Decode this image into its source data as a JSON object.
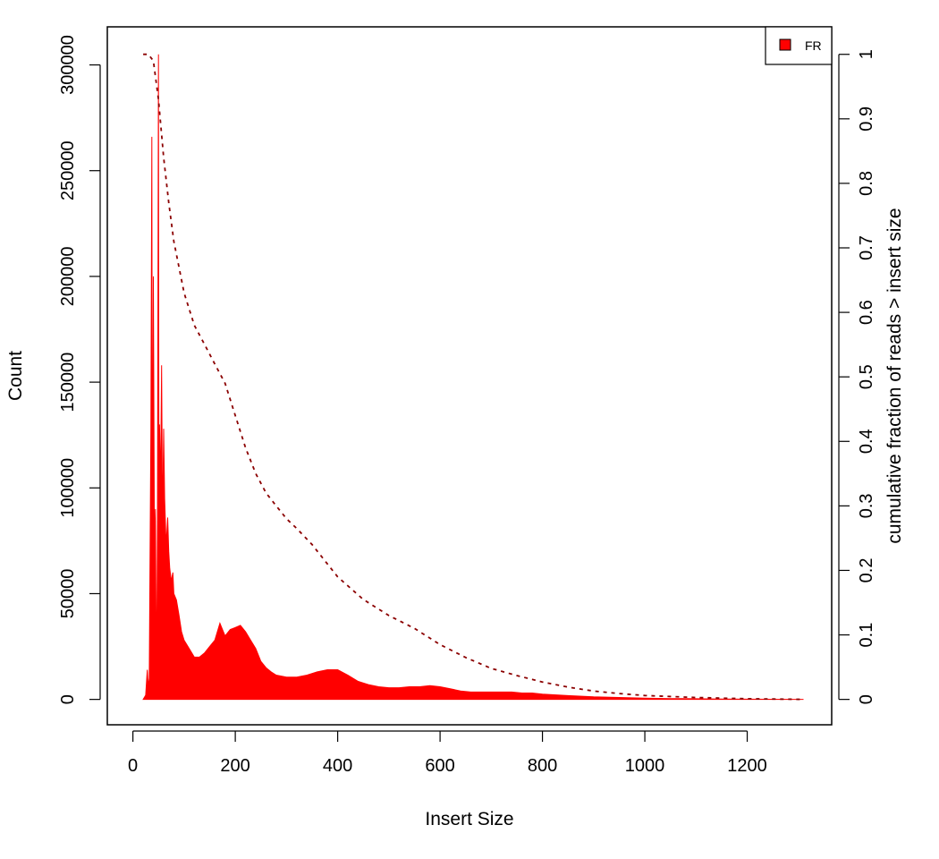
{
  "colors": {
    "histogram": "#ff0000",
    "cumulative": "#8b0000",
    "frame": "#000000"
  },
  "chart_data": {
    "type": "area",
    "xlabel": "Insert Size",
    "ylabel": "Count",
    "ylabel_right": "cumulative fraction of reads > insert size",
    "xlim": [
      -50,
      1365
    ],
    "ylim": [
      -12000,
      318000
    ],
    "ylim_right": [
      0,
      1
    ],
    "x_ticks": [
      "0",
      "200",
      "400",
      "600",
      "800",
      "1000",
      "1200"
    ],
    "y_ticks": [
      "0",
      "50000",
      "100000",
      "150000",
      "200000",
      "250000",
      "300000"
    ],
    "y_right_ticks": [
      "0",
      "0.1",
      "0.2",
      "0.3",
      "0.4",
      "0.5",
      "0.6",
      "0.7",
      "0.8",
      "0.9",
      "1"
    ],
    "legend": {
      "placement": "top-right",
      "entries": [
        "FR"
      ]
    },
    "series": [
      {
        "name": "FR",
        "kind": "histogram",
        "x": [
          20,
          25,
          28,
          30,
          32,
          35,
          37,
          38,
          40,
          42,
          44,
          46,
          48,
          50,
          51,
          52,
          54,
          56,
          58,
          60,
          62,
          65,
          68,
          70,
          72,
          75,
          78,
          80,
          85,
          90,
          95,
          100,
          110,
          120,
          130,
          140,
          150,
          160,
          170,
          180,
          190,
          200,
          210,
          220,
          230,
          240,
          250,
          260,
          270,
          280,
          290,
          300,
          320,
          340,
          360,
          380,
          400,
          420,
          440,
          460,
          480,
          500,
          520,
          540,
          560,
          580,
          600,
          620,
          640,
          660,
          680,
          700,
          720,
          740,
          760,
          780,
          800,
          850,
          900,
          950,
          1000,
          1050,
          1100,
          1150,
          1200,
          1250,
          1310
        ],
        "values": [
          0,
          2000,
          14000,
          6000,
          10000,
          127000,
          266000,
          60000,
          200000,
          70000,
          90000,
          5000,
          85000,
          305000,
          55000,
          130000,
          100000,
          158000,
          80000,
          128000,
          95000,
          73000,
          86000,
          70000,
          62000,
          56000,
          60000,
          50000,
          47000,
          40000,
          32000,
          28000,
          24000,
          20000,
          20000,
          22000,
          25000,
          28000,
          36000,
          30000,
          33000,
          34000,
          35000,
          32000,
          28000,
          24000,
          18000,
          15000,
          13000,
          11500,
          11000,
          10500,
          10500,
          11500,
          13000,
          14000,
          14000,
          11500,
          8500,
          7000,
          6000,
          5500,
          5500,
          6000,
          6000,
          6500,
          6000,
          5000,
          4000,
          3500,
          3500,
          3500,
          3500,
          3500,
          3000,
          3000,
          2500,
          1800,
          1200,
          900,
          600,
          400,
          300,
          200,
          100,
          50,
          0
        ]
      },
      {
        "name": "cumulative",
        "kind": "cumulative",
        "axis": "right",
        "x": [
          20,
          30,
          40,
          50,
          60,
          70,
          80,
          100,
          120,
          140,
          160,
          180,
          200,
          220,
          240,
          260,
          280,
          300,
          320,
          350,
          380,
          400,
          450,
          500,
          550,
          600,
          650,
          700,
          750,
          800,
          850,
          900,
          950,
          1000,
          1100,
          1200,
          1310
        ],
        "values": [
          1.0,
          1.0,
          0.99,
          0.93,
          0.84,
          0.77,
          0.71,
          0.63,
          0.58,
          0.55,
          0.52,
          0.49,
          0.44,
          0.39,
          0.35,
          0.32,
          0.3,
          0.28,
          0.265,
          0.24,
          0.21,
          0.19,
          0.155,
          0.13,
          0.11,
          0.085,
          0.065,
          0.048,
          0.037,
          0.027,
          0.019,
          0.013,
          0.009,
          0.006,
          0.003,
          0.001,
          0.0
        ]
      }
    ]
  }
}
